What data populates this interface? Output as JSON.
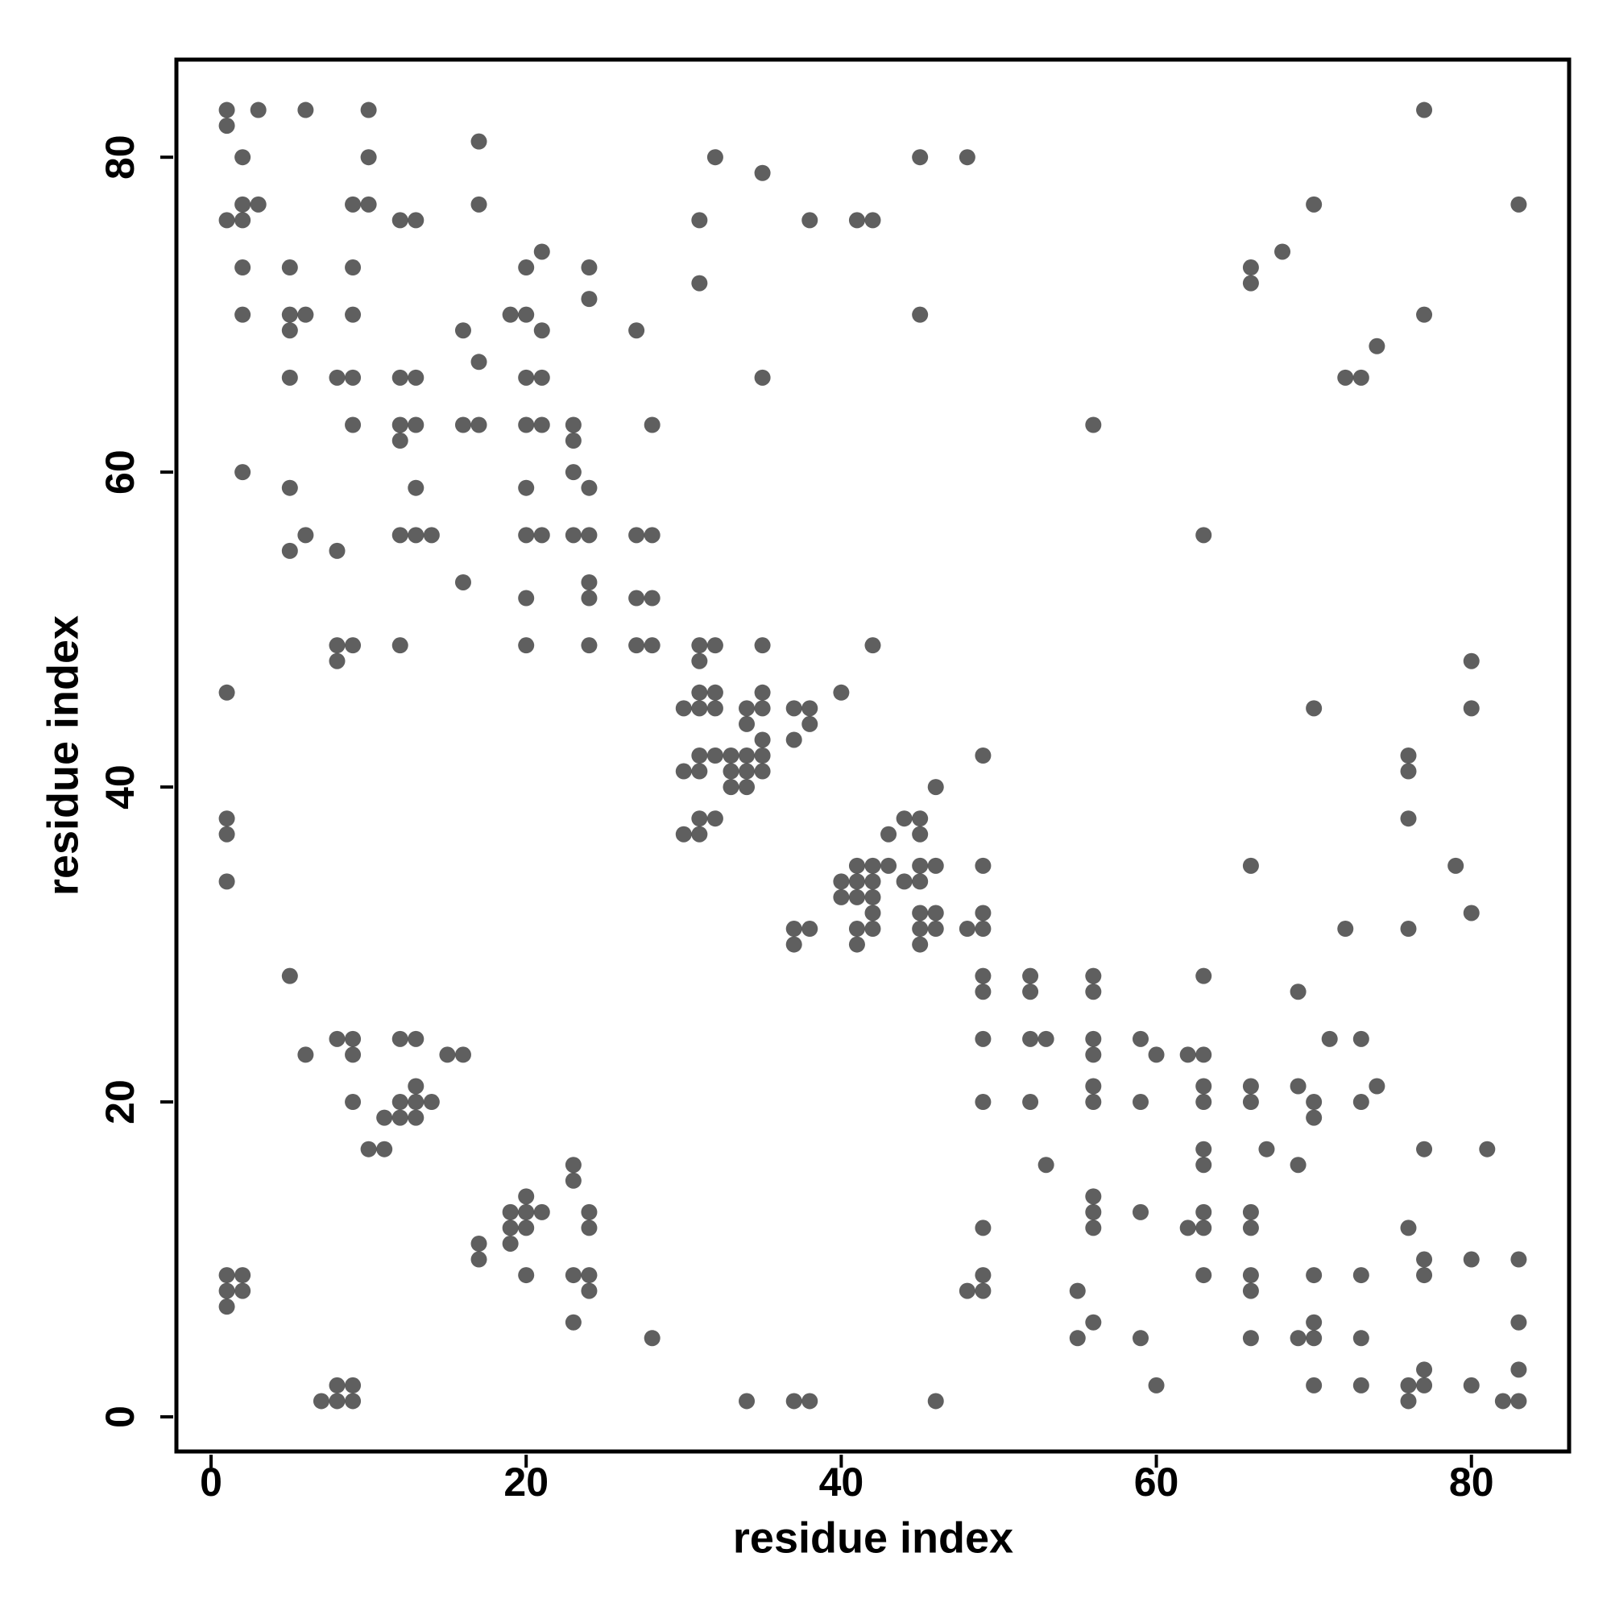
{
  "chart_data": {
    "type": "scatter",
    "x_label": "residue index",
    "y_label": "residue index",
    "color": "#3c3c3c",
    "opacity": 0.82,
    "xlim": [
      -2.2,
      86.2
    ],
    "ylim": [
      -2.2,
      86.2
    ],
    "xticks": [
      0,
      20,
      40,
      60,
      80
    ],
    "yticks": [
      0,
      20,
      40,
      60,
      80
    ],
    "grid": false,
    "x": [
      1,
      3,
      6,
      10,
      77,
      1,
      17,
      2,
      10,
      32,
      45,
      48,
      35,
      2,
      3,
      9,
      10,
      17,
      70,
      83,
      1,
      2,
      12,
      13,
      31,
      38,
      41,
      42,
      21,
      68,
      2,
      5,
      9,
      20,
      24,
      66,
      31,
      66,
      24,
      2,
      5,
      6,
      9,
      19,
      20,
      45,
      77,
      5,
      16,
      21,
      27,
      74,
      17,
      5,
      8,
      9,
      12,
      13,
      20,
      21,
      35,
      72,
      73,
      9,
      12,
      13,
      16,
      17,
      20,
      21,
      23,
      28,
      56,
      12,
      23,
      2,
      23,
      5,
      13,
      20,
      24,
      6,
      12,
      13,
      14,
      20,
      21,
      23,
      24,
      27,
      28,
      63,
      5,
      8,
      16,
      24,
      20,
      24,
      27,
      28,
      8,
      9,
      12,
      20,
      24,
      27,
      28,
      31,
      32,
      35,
      42,
      8,
      31,
      80,
      1,
      31,
      32,
      35,
      40,
      30,
      31,
      32,
      34,
      35,
      37,
      38,
      70,
      80,
      34,
      38,
      35,
      37,
      31,
      32,
      33,
      34,
      35,
      49,
      76,
      30,
      31,
      33,
      34,
      35,
      76,
      33,
      34,
      46,
      1,
      31,
      32,
      44,
      45,
      76,
      1,
      30,
      31,
      43,
      45,
      41,
      42,
      43,
      45,
      46,
      49,
      66,
      79,
      1,
      40,
      41,
      42,
      44,
      45,
      40,
      41,
      42,
      42,
      45,
      46,
      49,
      80,
      37,
      38,
      41,
      42,
      45,
      46,
      48,
      49,
      72,
      76,
      37,
      41,
      45,
      5,
      49,
      52,
      56,
      63,
      49,
      52,
      56,
      69,
      8,
      9,
      12,
      13,
      49,
      52,
      53,
      56,
      59,
      71,
      73,
      6,
      9,
      15,
      16,
      56,
      60,
      62,
      63,
      13,
      56,
      63,
      66,
      69,
      74,
      9,
      12,
      13,
      14,
      49,
      52,
      56,
      59,
      63,
      66,
      70,
      73,
      11,
      12,
      13,
      70,
      10,
      11,
      63,
      67,
      77,
      81,
      23,
      53,
      63,
      69,
      23,
      20,
      56,
      19,
      20,
      21,
      24,
      56,
      59,
      63,
      66,
      19,
      20,
      24,
      49,
      56,
      62,
      63,
      66,
      76,
      17,
      19,
      17,
      77,
      80,
      83,
      1,
      2,
      20,
      23,
      24,
      49,
      63,
      66,
      70,
      73,
      77,
      1,
      2,
      24,
      48,
      49,
      55,
      66,
      1,
      23,
      56,
      70,
      83,
      28,
      55,
      59,
      66,
      69,
      70,
      73,
      77,
      83,
      8,
      9,
      60,
      70,
      73,
      76,
      77,
      80,
      7,
      8,
      9,
      34,
      37,
      38,
      46,
      76,
      82,
      83
    ],
    "values": [
      83,
      83,
      83,
      83,
      83,
      82,
      81,
      80,
      80,
      80,
      80,
      80,
      79,
      77,
      77,
      77,
      77,
      77,
      77,
      77,
      76,
      76,
      76,
      76,
      76,
      76,
      76,
      76,
      74,
      74,
      73,
      73,
      73,
      73,
      73,
      73,
      72,
      72,
      71,
      70,
      70,
      70,
      70,
      70,
      70,
      70,
      70,
      69,
      69,
      69,
      69,
      68,
      67,
      66,
      66,
      66,
      66,
      66,
      66,
      66,
      66,
      66,
      66,
      63,
      63,
      63,
      63,
      63,
      63,
      63,
      63,
      63,
      63,
      62,
      62,
      60,
      60,
      59,
      59,
      59,
      59,
      56,
      56,
      56,
      56,
      56,
      56,
      56,
      56,
      56,
      56,
      56,
      55,
      55,
      53,
      53,
      52,
      52,
      52,
      52,
      49,
      49,
      49,
      49,
      49,
      49,
      49,
      49,
      49,
      49,
      49,
      48,
      48,
      48,
      46,
      46,
      46,
      46,
      46,
      45,
      45,
      45,
      45,
      45,
      45,
      45,
      45,
      45,
      44,
      44,
      43,
      43,
      42,
      42,
      42,
      42,
      42,
      42,
      42,
      41,
      41,
      41,
      41,
      41,
      41,
      40,
      40,
      40,
      38,
      38,
      38,
      38,
      38,
      38,
      37,
      37,
      37,
      37,
      37,
      35,
      35,
      35,
      35,
      35,
      35,
      35,
      35,
      34,
      34,
      34,
      34,
      34,
      34,
      33,
      33,
      33,
      32,
      32,
      32,
      32,
      32,
      31,
      31,
      31,
      31,
      31,
      31,
      31,
      31,
      31,
      31,
      30,
      30,
      30,
      28,
      28,
      28,
      28,
      28,
      27,
      27,
      27,
      27,
      24,
      24,
      24,
      24,
      24,
      24,
      24,
      24,
      24,
      24,
      24,
      23,
      23,
      23,
      23,
      23,
      23,
      23,
      23,
      21,
      21,
      21,
      21,
      21,
      21,
      20,
      20,
      20,
      20,
      20,
      20,
      20,
      20,
      20,
      20,
      20,
      20,
      19,
      19,
      19,
      19,
      17,
      17,
      17,
      17,
      17,
      17,
      16,
      16,
      16,
      16,
      15,
      14,
      14,
      13,
      13,
      13,
      13,
      13,
      13,
      13,
      13,
      12,
      12,
      12,
      12,
      12,
      12,
      12,
      12,
      12,
      11,
      11,
      10,
      10,
      10,
      10,
      9,
      9,
      9,
      9,
      9,
      9,
      9,
      9,
      9,
      9,
      9,
      8,
      8,
      8,
      8,
      8,
      8,
      8,
      7,
      6,
      6,
      6,
      6,
      5,
      5,
      5,
      5,
      5,
      5,
      5,
      3,
      3,
      2,
      2,
      2,
      2,
      2,
      2,
      2,
      2,
      1,
      1,
      1,
      1,
      1,
      1,
      1,
      1,
      1,
      1
    ]
  }
}
